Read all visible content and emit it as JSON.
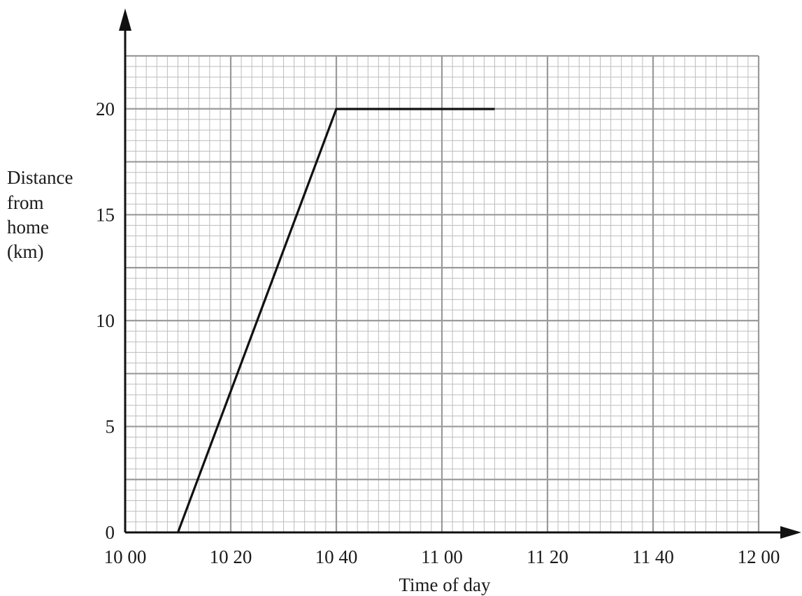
{
  "chart_data": {
    "type": "line",
    "xlabel": "Time of day",
    "ylabel_lines": [
      "Distance",
      "from",
      "home",
      "(km)"
    ],
    "x_unit": "minutes after 10 00",
    "xlim": [
      0,
      120
    ],
    "ylim": [
      0,
      22.5
    ],
    "x_ticks": [
      {
        "value": 0,
        "label": "10 00"
      },
      {
        "value": 20,
        "label": "10 20"
      },
      {
        "value": 40,
        "label": "10 40"
      },
      {
        "value": 60,
        "label": "11 00"
      },
      {
        "value": 80,
        "label": "11 20"
      },
      {
        "value": 100,
        "label": "11 40"
      },
      {
        "value": 120,
        "label": "12 00"
      }
    ],
    "y_ticks": [
      {
        "value": 0,
        "label": "0"
      },
      {
        "value": 5,
        "label": "5"
      },
      {
        "value": 10,
        "label": "10"
      },
      {
        "value": 15,
        "label": "15"
      },
      {
        "value": 20,
        "label": "20"
      }
    ],
    "grid": true,
    "series": [
      {
        "x": [
          "10 10",
          "10 40",
          "11 10"
        ],
        "x_values": [
          10,
          40,
          70
        ],
        "y": [
          0,
          20,
          20
        ],
        "color": "#111111"
      }
    ]
  }
}
